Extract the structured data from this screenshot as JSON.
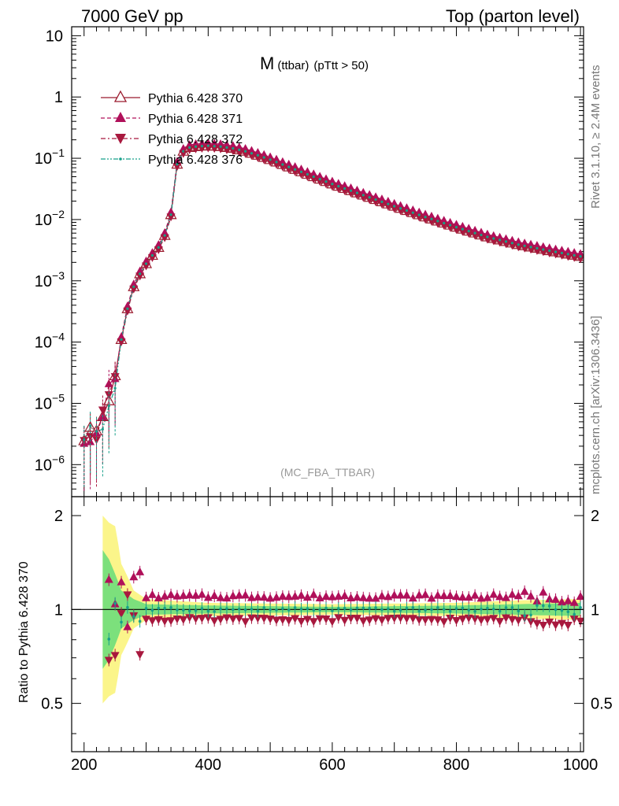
{
  "header": {
    "left": "7000 GeV pp",
    "right": "Top (parton level)"
  },
  "side_labels": {
    "rivet": "Rivet 3.1.10, ≥ 2.4M events",
    "mcplots": "mcplots.cern.ch [arXiv:1306.3436]"
  },
  "colors": {
    "s370": "#9b1b2e",
    "s371": "#b0105a",
    "s372": "#a8183e",
    "s376": "#17a08a",
    "band_yellow": "#fbf58a",
    "band_green": "#7ce07c"
  },
  "chart_data": [
    {
      "type": "line",
      "title": "M",
      "title_sub": "(ttbar)",
      "title_suffix": "(pTtt > 50)",
      "analysis_label": "(MC_FBA_TTBAR)",
      "xlim": [
        180,
        1005
      ],
      "ylim": [
        3e-07,
        14
      ],
      "log_y": true,
      "y_ticks": [
        {
          "value": 1e-06,
          "label": "10",
          "exp": "−6"
        },
        {
          "value": 1e-05,
          "label": "10",
          "exp": "−5"
        },
        {
          "value": 0.0001,
          "label": "10",
          "exp": "−4"
        },
        {
          "value": 0.001,
          "label": "10",
          "exp": "−3"
        },
        {
          "value": 0.01,
          "label": "10",
          "exp": "−2"
        },
        {
          "value": 0.1,
          "label": "10",
          "exp": "−1"
        },
        {
          "value": 1,
          "label": "1",
          "exp": ""
        },
        {
          "value": 10,
          "label": "10",
          "exp": ""
        }
      ],
      "legend_position": "top-left",
      "series": [
        {
          "name": "Pythia 6.428 370",
          "line": "solid",
          "marker": "triangle-up-open",
          "color": "#9b1b2e"
        },
        {
          "name": "Pythia 6.428 371",
          "line": "dashed",
          "marker": "triangle-up",
          "color": "#b0105a"
        },
        {
          "name": "Pythia 6.428 372",
          "line": "dashdot",
          "marker": "triangle-down",
          "color": "#a8183e"
        },
        {
          "name": "Pythia 6.428 376",
          "line": "dashdotdot",
          "marker": "circle",
          "color": "#17a08a"
        }
      ],
      "reference_series": {
        "name": "Pythia 6.428 370",
        "x": [
          200,
          210,
          220,
          230,
          240,
          245,
          250,
          255,
          260,
          270,
          280,
          290,
          300,
          310,
          320,
          330,
          340,
          350,
          360,
          370,
          380,
          390,
          400,
          420,
          440,
          460,
          480,
          500,
          550,
          600,
          650,
          700,
          750,
          800,
          850,
          900,
          950,
          1000
        ],
        "y": [
          3.2e-06,
          3.2e-06,
          3.2e-06,
          6e-06,
          1.3e-05,
          2.2e-05,
          2.1e-05,
          1.6e-05,
          0.00011,
          0.00035,
          0.0008,
          0.0013,
          0.0019,
          0.0026,
          0.0035,
          0.0055,
          0.012,
          0.08,
          0.13,
          0.15,
          0.155,
          0.158,
          0.16,
          0.155,
          0.145,
          0.13,
          0.112,
          0.095,
          0.06,
          0.038,
          0.025,
          0.0165,
          0.011,
          0.0075,
          0.0052,
          0.0039,
          0.0031,
          0.0025
        ]
      }
    },
    {
      "type": "line",
      "ylabel": "Ratio to Pythia 6.428 370",
      "xlim": [
        180,
        1005
      ],
      "ylim": [
        0.35,
        2.3
      ],
      "log_y": true,
      "x_ticks": [
        200,
        400,
        600,
        800,
        1000
      ],
      "y_ticks": [
        {
          "value": 0.5,
          "label": "0.5"
        },
        {
          "value": 1,
          "label": "1"
        },
        {
          "value": 2,
          "label": "2"
        }
      ],
      "reference_line": 1,
      "bands": [
        {
          "name": "yellow",
          "points": [
            [
              230,
              2.0
            ],
            [
              240,
              1.9
            ],
            [
              250,
              1.85
            ],
            [
              260,
              1.4
            ],
            [
              280,
              1.15
            ],
            [
              300,
              1.08
            ],
            [
              400,
              1.05
            ],
            [
              600,
              1.04
            ],
            [
              800,
              1.05
            ],
            [
              900,
              1.07
            ],
            [
              1000,
              1.08
            ]
          ]
        },
        {
          "name": "green",
          "points": [
            [
              230,
              1.55
            ],
            [
              240,
              1.45
            ],
            [
              250,
              1.3
            ],
            [
              260,
              1.15
            ],
            [
              280,
              1.08
            ],
            [
              300,
              1.04
            ],
            [
              400,
              1.03
            ],
            [
              600,
              1.02
            ],
            [
              800,
              1.03
            ],
            [
              900,
              1.04
            ],
            [
              1000,
              1.05
            ]
          ]
        }
      ],
      "series": [
        {
          "name": "Pythia 6.428 371",
          "values_summary": "~1.10 above 370 across mass range",
          "level": 1.1
        },
        {
          "name": "Pythia 6.428 372",
          "values_summary": "~0.93 below 370 across mass range",
          "level": 0.93
        },
        {
          "name": "Pythia 6.428 376",
          "values_summary": "~1.0 consistent with 370",
          "level": 1.0
        }
      ]
    }
  ]
}
